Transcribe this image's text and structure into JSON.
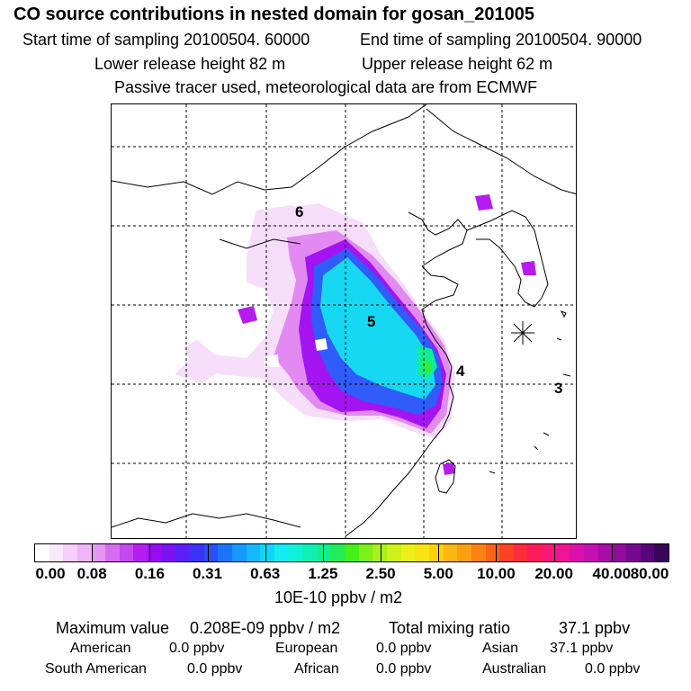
{
  "header": {
    "title": "CO  source contributions in nested domain for gosan_201005",
    "start_time": "Start time of sampling 20100504. 60000",
    "end_time": "End time of sampling 20100504. 90000",
    "lower_height": "Lower release height   82 m",
    "upper_height": "Upper release height   62 m",
    "note": "Passive tracer used, meteorological data are from ECMWF"
  },
  "map": {
    "markers": [
      "6",
      "5",
      "4",
      "3"
    ],
    "receptor_symbol": "star-icon",
    "plume_colors": [
      "#f6ddfa",
      "#e28af2",
      "#b51cf0",
      "#8a10f2",
      "#3c52ff",
      "#1898ff",
      "#16e6f0",
      "#10ee96"
    ]
  },
  "colorbar": {
    "ticks": [
      "0.00",
      "0.08",
      "0.16",
      "0.31",
      "0.63",
      "1.25",
      "2.50",
      "5.00",
      "10.00",
      "20.00",
      "40.00",
      "80.00"
    ],
    "units": "10E-10 ppbv / m2",
    "colors": [
      "#ffffff",
      "#fbe8fd",
      "#f5d0fb",
      "#eeb6f8",
      "#e498f4",
      "#d66df1",
      "#c447ef",
      "#b41ff0",
      "#9a0cf0",
      "#7a12f2",
      "#5c1ff5",
      "#3d33f8",
      "#2650fa",
      "#1c74fc",
      "#1698fc",
      "#14b8fb",
      "#13d3f8",
      "#12ecf2",
      "#10f2d6",
      "#10f0b4",
      "#10ee90",
      "#22ec5a",
      "#46ee1c",
      "#7cf018",
      "#a8f018",
      "#d0f018",
      "#ecf018",
      "#f8e414",
      "#fcd010",
      "#fcb812",
      "#fca010",
      "#fc8214",
      "#fc6414",
      "#fc4424",
      "#fc2c3c",
      "#fc1c58",
      "#f81878",
      "#f01492",
      "#dc10a8",
      "#c410b0",
      "#aa0ca8",
      "#900a9c",
      "#740890",
      "#560678",
      "#3a0458"
    ]
  },
  "summary": {
    "max_value_label": "Maximum value",
    "max_value": "0.208E-09 ppbv / m2",
    "total_label": "Total mixing ratio",
    "total_value": "37.1 ppbv",
    "regions": [
      {
        "name": "American",
        "value": "0.0 ppbv"
      },
      {
        "name": "European",
        "value": "0.0 ppbv"
      },
      {
        "name": "Asian",
        "value": "37.1 ppbv"
      },
      {
        "name": "South American",
        "value": "0.0 ppbv"
      },
      {
        "name": "African",
        "value": "0.0 ppbv"
      },
      {
        "name": "Australian",
        "value": "0.0 ppbv"
      }
    ]
  }
}
